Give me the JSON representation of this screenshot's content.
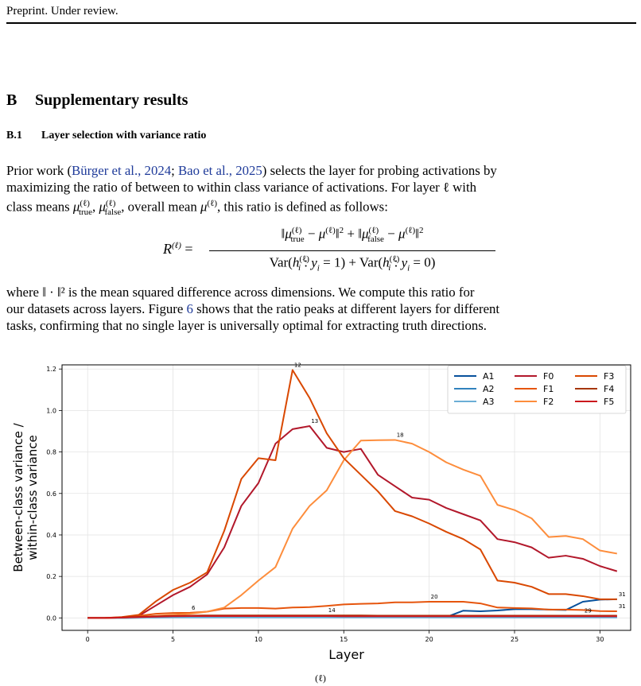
{
  "header": "Preprint. Under review.",
  "section": {
    "number": "B",
    "title": "Supplementary results"
  },
  "subsection": {
    "number": "B.1",
    "title": "Layer selection with variance ratio"
  },
  "paragraph1": {
    "l1_a": "Prior work (",
    "cite1": "Bürger et al.,",
    "cite1_year": "2024",
    "l1_sep": "; ",
    "cite2": "Bao et al.,",
    "cite2_year": "2025",
    "l1_b": ") selects the layer for probing activations by",
    "l2": "maximizing the ratio of between to within class variance of activations. For layer ℓ with",
    "l3_a": "class means ",
    "l3_b": ", overall mean ",
    "l3_c": ", this ratio is defined as follows:"
  },
  "equation": {
    "lhs": "R",
    "numerator": "‖μtrue − μ‖² + ‖μfalse − μ‖²",
    "denominator": "Var(h : y = 1) + Var(h : y = 0)"
  },
  "paragraph2": {
    "l1": "where ‖ · ‖² is the mean squared difference across dimensions. We compute this ratio for",
    "l2_a": "our datasets across layers. Figure ",
    "fig_ref": "6",
    "l2_b": " shows that the ratio peaks at different layers for different",
    "l3": "tasks, confirming that no single layer is universally optimal for extracting truth directions."
  },
  "chart_data": {
    "type": "line",
    "xlabel": "Layer",
    "ylabel": "Between-class variance / within-class variance",
    "xlim": [
      -1.5,
      31.8
    ],
    "ylim": [
      -0.06,
      1.22
    ],
    "xticks": [
      0,
      5,
      10,
      15,
      20,
      25,
      30
    ],
    "yticks": [
      0.0,
      0.2,
      0.4,
      0.6,
      0.8,
      1.0,
      1.2
    ],
    "grid": true,
    "legend": "top-right",
    "x": [
      0,
      1,
      2,
      3,
      4,
      5,
      6,
      7,
      8,
      9,
      10,
      11,
      12,
      13,
      14,
      15,
      16,
      17,
      18,
      19,
      20,
      21,
      22,
      23,
      24,
      25,
      26,
      27,
      28,
      29,
      30,
      31
    ],
    "series": [
      {
        "name": "A1",
        "color": "#08519c",
        "values": [
          0,
          0,
          0,
          0.002,
          0.003,
          0.004,
          0.005,
          0.005,
          0.005,
          0.005,
          0.005,
          0.005,
          0.005,
          0.005,
          0.005,
          0.004,
          0.004,
          0.004,
          0.004,
          0.004,
          0.004,
          0.004,
          0.035,
          0.032,
          0.036,
          0.042,
          0.042,
          0.04,
          0.038,
          0.078,
          0.088,
          0.09
        ]
      },
      {
        "name": "A2",
        "color": "#3182bd",
        "values": [
          0,
          0,
          0,
          0.001,
          0.002,
          0.003,
          0.003,
          0.003,
          0.003,
          0.003,
          0.003,
          0.003,
          0.003,
          0.003,
          0.003,
          0.003,
          0.003,
          0.003,
          0.003,
          0.003,
          0.003,
          0.003,
          0.003,
          0.003,
          0.003,
          0.003,
          0.003,
          0.003,
          0.003,
          0.003,
          0.003,
          0.003
        ]
      },
      {
        "name": "A3",
        "color": "#6baed6",
        "values": [
          0,
          0,
          0,
          0.001,
          0.001,
          0.002,
          0.002,
          0.002,
          0.002,
          0.002,
          0.002,
          0.002,
          0.002,
          0.002,
          0.002,
          0.002,
          0.002,
          0.002,
          0.002,
          0.002,
          0.002,
          0.002,
          0.002,
          0.002,
          0.002,
          0.002,
          0.002,
          0.002,
          0.002,
          0.002,
          0.002,
          0.002
        ]
      },
      {
        "name": "F0",
        "color": "#b2182b",
        "values": [
          0,
          0,
          0.002,
          0.01,
          0.06,
          0.11,
          0.15,
          0.21,
          0.34,
          0.54,
          0.65,
          0.84,
          0.91,
          0.925,
          0.82,
          0.8,
          0.815,
          0.69,
          0.635,
          0.58,
          0.57,
          0.53,
          0.5,
          0.47,
          0.38,
          0.365,
          0.34,
          0.29,
          0.3,
          0.285,
          0.25,
          0.225
        ]
      },
      {
        "name": "F1",
        "color": "#e6550d",
        "values": [
          0,
          0,
          0.003,
          0.01,
          0.02,
          0.024,
          0.025,
          0.03,
          0.045,
          0.048,
          0.048,
          0.045,
          0.05,
          0.052,
          0.058,
          0.065,
          0.068,
          0.07,
          0.075,
          0.075,
          0.078,
          0.078,
          0.078,
          0.07,
          0.05,
          0.048,
          0.046,
          0.04,
          0.04,
          0.038,
          0.033,
          0.032
        ]
      },
      {
        "name": "F2",
        "color": "#fd8d3c",
        "values": [
          0,
          0,
          0.002,
          0.005,
          0.01,
          0.015,
          0.02,
          0.03,
          0.05,
          0.11,
          0.18,
          0.245,
          0.43,
          0.54,
          0.615,
          0.76,
          0.855,
          0.857,
          0.858,
          0.84,
          0.8,
          0.75,
          0.715,
          0.685,
          0.545,
          0.52,
          0.48,
          0.39,
          0.395,
          0.38,
          0.325,
          0.31
        ]
      },
      {
        "name": "F3",
        "color": "#d94801",
        "values": [
          0,
          0,
          0.004,
          0.015,
          0.08,
          0.135,
          0.17,
          0.22,
          0.42,
          0.67,
          0.77,
          0.76,
          1.195,
          1.06,
          0.89,
          0.77,
          0.69,
          0.61,
          0.515,
          0.49,
          0.455,
          0.415,
          0.38,
          0.33,
          0.18,
          0.17,
          0.15,
          0.115,
          0.115,
          0.105,
          0.09,
          0.09
        ]
      },
      {
        "name": "F4",
        "color": "#a63603",
        "values": [
          0,
          0,
          0.002,
          0.005,
          0.008,
          0.01,
          0.011,
          0.012,
          0.012,
          0.012,
          0.012,
          0.012,
          0.012,
          0.012,
          0.012,
          0.012,
          0.012,
          0.011,
          0.011,
          0.011,
          0.011,
          0.011,
          0.011,
          0.011,
          0.011,
          0.011,
          0.011,
          0.011,
          0.011,
          0.011,
          0.011,
          0.011
        ]
      },
      {
        "name": "F5",
        "color": "#cb181d",
        "values": [
          0,
          0,
          0.002,
          0.004,
          0.006,
          0.008,
          0.009,
          0.009,
          0.009,
          0.009,
          0.009,
          0.009,
          0.009,
          0.009,
          0.009,
          0.008,
          0.008,
          0.008,
          0.008,
          0.008,
          0.008,
          0.008,
          0.008,
          0.008,
          0.008,
          0.008,
          0.008,
          0.008,
          0.008,
          0.008,
          0.008,
          0.008
        ]
      }
    ],
    "annotations": [
      {
        "text": "12",
        "x": 12,
        "y": 1.195
      },
      {
        "text": "13",
        "x": 13,
        "y": 0.925
      },
      {
        "text": "18",
        "x": 18,
        "y": 0.858
      },
      {
        "text": "6",
        "x": 6,
        "y": 0.025
      },
      {
        "text": "14",
        "x": 14,
        "y": 0.012
      },
      {
        "text": "20",
        "x": 20,
        "y": 0.078
      },
      {
        "text": "31",
        "x": 31,
        "y": 0.09
      },
      {
        "text": "31",
        "x": 31,
        "y": 0.032
      },
      {
        "text": "29",
        "x": 29,
        "y": 0.011
      }
    ]
  },
  "caption_tail": "(ℓ)"
}
